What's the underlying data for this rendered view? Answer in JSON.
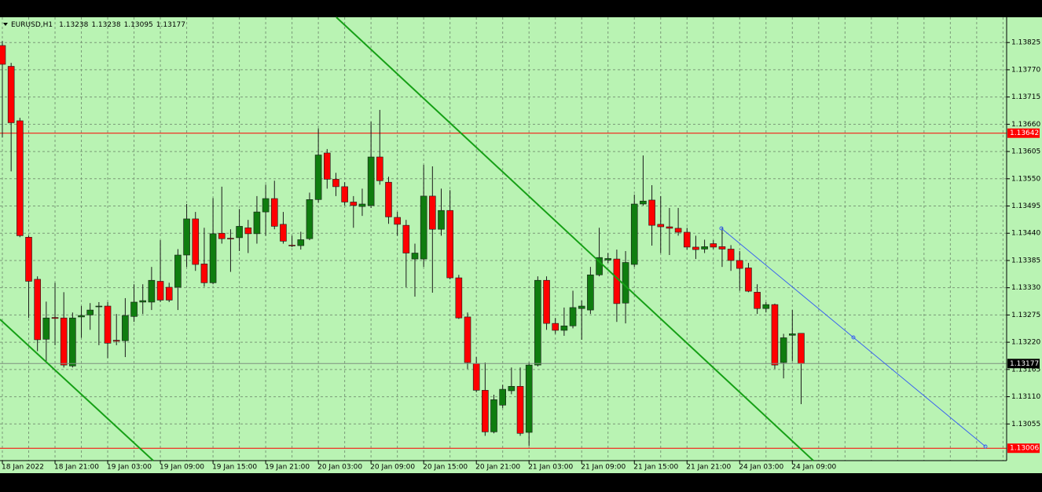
{
  "chart_data": {
    "type": "candlestick",
    "symbol": "EURUSD,H1",
    "categories": [
      "18 Jan 2022",
      null,
      null,
      null,
      null,
      null,
      "18 Jan 21:00",
      null,
      null,
      null,
      null,
      null,
      "19 Jan 03:00",
      null,
      null,
      null,
      null,
      null,
      "19 Jan 09:00",
      null,
      null,
      null,
      null,
      null,
      "19 Jan 15:00",
      null,
      null,
      null,
      null,
      null,
      "19 Jan 21:00",
      null,
      null,
      null,
      null,
      null,
      "20 Jan 03:00",
      null,
      null,
      null,
      null,
      null,
      "20 Jan 09:00",
      null,
      null,
      null,
      null,
      null,
      "20 Jan 15:00",
      null,
      null,
      null,
      null,
      null,
      "20 Jan 21:00",
      null,
      null,
      null,
      null,
      null,
      "21 Jan 03:00",
      null,
      null,
      null,
      null,
      null,
      "21 Jan 09:00",
      null,
      null,
      null,
      null,
      null,
      "21 Jan 15:00",
      null,
      null,
      null,
      null,
      null,
      "21 Jan 21:00",
      null,
      null,
      null,
      null,
      null,
      "24 Jan 03:00",
      null,
      null,
      null,
      null,
      null,
      "24 Jan 09:00",
      null
    ],
    "open": [
      1.13819,
      1.13777,
      1.13667,
      1.13432,
      1.13347,
      1.13226,
      1.1327,
      1.13269,
      1.13172,
      1.13271,
      1.13275,
      1.13292,
      1.13293,
      1.13224,
      1.13223,
      1.13272,
      1.13301,
      1.13301,
      1.13343,
      1.13331,
      1.13331,
      1.13396,
      1.13469,
      1.13378,
      1.1334,
      1.1344,
      1.1343,
      1.13431,
      1.13451,
      1.13439,
      1.13483,
      1.1351,
      1.13458,
      1.13416,
      1.13415,
      1.13429,
      1.13508,
      1.13602,
      1.13549,
      1.13534,
      1.13503,
      1.13494,
      1.13496,
      1.13594,
      1.13543,
      1.13472,
      1.13456,
      1.13388,
      1.13388,
      1.13515,
      1.13448,
      1.13486,
      1.1335,
      1.13271,
      1.13177,
      1.13123,
      1.13039,
      1.13093,
      1.13122,
      1.13131,
      1.13038,
      1.13174,
      1.13345,
      1.13258,
      1.13244,
      1.13253,
      1.13288,
      1.13285,
      1.13356,
      1.13386,
      1.13388,
      1.13299,
      1.13377,
      1.13499,
      1.13507,
      1.13458,
      1.13453,
      1.1345,
      1.13442,
      1.13412,
      1.13408,
      1.13419,
      1.13413,
      1.13408,
      1.13385,
      1.1337,
      1.13321,
      1.13288,
      1.13296,
      1.13179,
      1.13234,
      1.13238
    ],
    "high": [
      1.13828,
      1.13784,
      1.13673,
      1.13435,
      1.13353,
      1.13302,
      1.1334,
      1.13321,
      1.1328,
      1.13293,
      1.13299,
      1.13301,
      1.13301,
      1.13277,
      1.13309,
      1.13337,
      1.13337,
      1.13372,
      1.13426,
      1.1334,
      1.13408,
      1.13499,
      1.13483,
      1.13451,
      1.13511,
      1.13534,
      1.13448,
      1.13489,
      1.13467,
      1.13515,
      1.13538,
      1.13546,
      1.13483,
      1.13435,
      1.13443,
      1.13522,
      1.13652,
      1.1361,
      1.13562,
      1.13543,
      1.13515,
      1.1353,
      1.13665,
      1.13689,
      1.13554,
      1.13483,
      1.13467,
      1.13419,
      1.13578,
      1.13575,
      1.1353,
      1.13527,
      1.13356,
      1.1328,
      1.1319,
      1.13179,
      1.13114,
      1.13134,
      1.13169,
      1.13169,
      1.13179,
      1.13353,
      1.13353,
      1.13269,
      1.1329,
      1.13324,
      1.13304,
      1.13372,
      1.13451,
      1.134,
      1.13407,
      1.13404,
      1.13518,
      1.13597,
      1.13537,
      1.13515,
      1.13491,
      1.13491,
      1.13451,
      1.13435,
      1.13427,
      1.13426,
      1.13451,
      1.13416,
      1.13404,
      1.1338,
      1.13337,
      1.13301,
      1.13298,
      1.13237,
      1.13285,
      1.13238
    ],
    "low": [
      1.13633,
      1.13565,
      1.13432,
      1.13269,
      1.13202,
      1.13182,
      1.13214,
      1.13169,
      1.13169,
      1.13229,
      1.13245,
      1.13214,
      1.13188,
      1.13214,
      1.1319,
      1.13261,
      1.13277,
      1.13285,
      1.13301,
      1.13301,
      1.13285,
      1.13372,
      1.13364,
      1.13332,
      1.13337,
      1.13419,
      1.13362,
      1.13404,
      1.134,
      1.13419,
      1.13435,
      1.13448,
      1.13419,
      1.13412,
      1.13407,
      1.13426,
      1.13502,
      1.1353,
      1.13515,
      1.13496,
      1.13451,
      1.13475,
      1.13491,
      1.13538,
      1.13459,
      1.13435,
      1.13331,
      1.13312,
      1.13372,
      1.1332,
      1.13435,
      1.13347,
      1.13267,
      1.13166,
      1.13119,
      1.13031,
      1.13036,
      1.13087,
      1.13115,
      1.13031,
      1.13011,
      1.13171,
      1.13245,
      1.13237,
      1.13233,
      1.13248,
      1.13225,
      1.13277,
      1.13353,
      1.1338,
      1.13261,
      1.13258,
      1.13372,
      1.13496,
      1.13415,
      1.134,
      1.13396,
      1.13435,
      1.13407,
      1.13388,
      1.134,
      1.13408,
      1.13372,
      1.13364,
      1.13324,
      1.13321,
      1.13277,
      1.1328,
      1.13166,
      1.13147,
      1.13182,
      1.13095
    ],
    "close": [
      1.13781,
      1.13663,
      1.13435,
      1.13343,
      1.13225,
      1.13269,
      1.13268,
      1.13174,
      1.13269,
      1.13274,
      1.13285,
      1.13293,
      1.13218,
      1.13222,
      1.13274,
      1.13301,
      1.13304,
      1.13345,
      1.13305,
      1.13305,
      1.13396,
      1.13469,
      1.13377,
      1.1334,
      1.13439,
      1.13429,
      1.13429,
      1.13454,
      1.13439,
      1.13483,
      1.1351,
      1.13454,
      1.13424,
      1.13415,
      1.13427,
      1.13508,
      1.13598,
      1.13549,
      1.13534,
      1.13503,
      1.13496,
      1.13499,
      1.13594,
      1.13546,
      1.13473,
      1.13458,
      1.134,
      1.134,
      1.13515,
      1.13448,
      1.13486,
      1.1335,
      1.13269,
      1.13179,
      1.13123,
      1.13039,
      1.13104,
      1.13125,
      1.13131,
      1.13036,
      1.13174,
      1.13345,
      1.13258,
      1.13244,
      1.13253,
      1.1329,
      1.13293,
      1.13356,
      1.13391,
      1.13389,
      1.13298,
      1.13381,
      1.13499,
      1.13505,
      1.13456,
      1.13453,
      1.1345,
      1.13442,
      1.13412,
      1.13407,
      1.13413,
      1.13412,
      1.13408,
      1.13385,
      1.13369,
      1.13323,
      1.13288,
      1.13296,
      1.13174,
      1.13229,
      1.13237,
      1.13177
    ],
    "up_color": "#0f7d0f",
    "down_color": "#ff0000",
    "hlines": [
      1.13642,
      1.13006
    ],
    "hline_color": "#ff0000",
    "ylim": [
      1.12981,
      1.13876
    ],
    "yticks": [
      1.13825,
      {
        "value": 1.1377,
        "label": "1.13770"
      },
      1.13715,
      {
        "value": 1.1366,
        "label": "1.13660"
      },
      1.13605,
      {
        "value": 1.1355,
        "label": "1.13550"
      },
      1.13495,
      {
        "value": 1.1344,
        "label": "1.13440"
      },
      1.13385,
      {
        "value": 1.1333,
        "label": "1.13330"
      },
      1.13275,
      {
        "value": 1.1322,
        "label": "1.13220"
      },
      1.13165,
      {
        "value": 1.1311,
        "label": "1.13110"
      },
      1.13055
    ],
    "grid": true
  }
}
